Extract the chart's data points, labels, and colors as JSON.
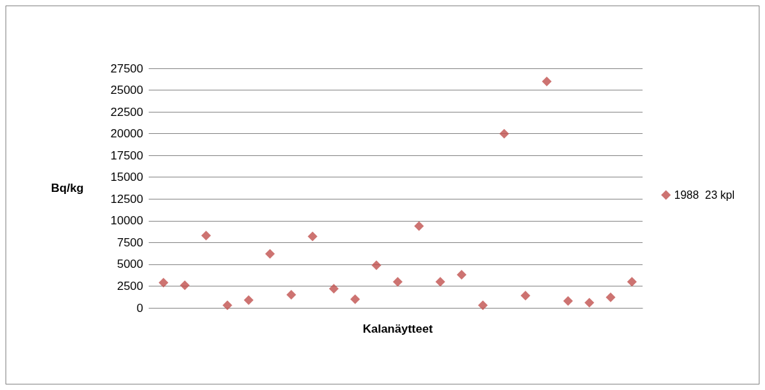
{
  "chart_data": {
    "type": "scatter",
    "xlabel": "Kalanäytteet",
    "ylabel": "Bq/kg",
    "categories": [
      null,
      null,
      null,
      null,
      null,
      null,
      null,
      null,
      null,
      null,
      null,
      null,
      null,
      null,
      null,
      null,
      null,
      null,
      null,
      null,
      null,
      null,
      null
    ],
    "series": [
      {
        "name": "1988  23 kpl",
        "color": "#c0504d",
        "values": [
          2900,
          2600,
          8300,
          300,
          900,
          6200,
          1500,
          8200,
          2200,
          1000,
          4900,
          3000,
          9400,
          3000,
          3800,
          300,
          20000,
          1400,
          26000,
          800,
          600,
          1200,
          3000
        ]
      }
    ],
    "ylim": [
      0,
      27500
    ],
    "yticks": [
      0,
      2500,
      5000,
      7500,
      10000,
      12500,
      15000,
      17500,
      20000,
      22500,
      25000,
      27500
    ],
    "grid": "y",
    "legend": "right",
    "marker": "diamond"
  }
}
